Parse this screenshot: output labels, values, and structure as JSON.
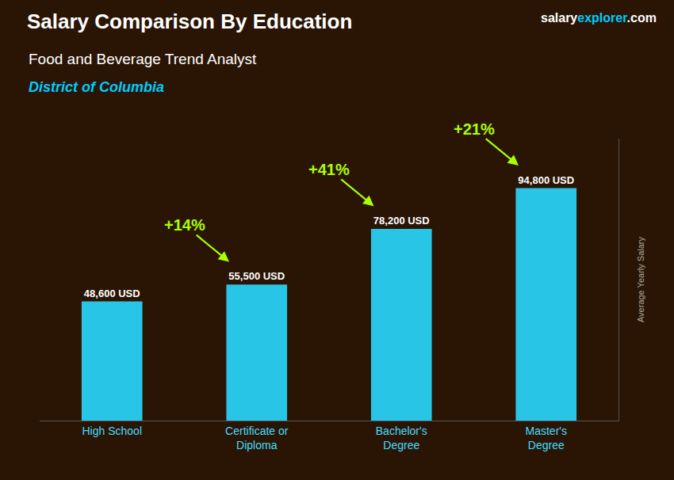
{
  "chart_data": {
    "type": "bar",
    "title": "Salary Comparison By Education",
    "subtitle": [
      "Food and Beverage Trend Analyst",
      "District of Columbia"
    ],
    "ylabel": "Average Yearly Salary",
    "categories": [
      "High School",
      "Certificate or\nDiploma",
      "Bachelor's\nDegree",
      "Master's\nDegree"
    ],
    "values": [
      48600,
      55500,
      78200,
      94800
    ],
    "value_labels": [
      "48,600 USD",
      "55,500 USD",
      "78,200 USD",
      "94,800 USD"
    ],
    "data_labels": true,
    "color": "#29c5e6",
    "ylim": [
      0,
      115000
    ],
    "yticks": [],
    "tick_labels": "x",
    "grid": false,
    "annotations": [
      {
        "text": "+14%",
        "from": "High School",
        "to": "Certificate or\nDiploma",
        "color": "#aaff00"
      },
      {
        "text": "+41%",
        "from": "Certificate or\nDiploma",
        "to": "Bachelor's\nDegree",
        "color": "#aaff00"
      },
      {
        "text": "+21%",
        "from": "Bachelor's\nDegree",
        "to": "Master's\nDegree",
        "color": "#aaff00"
      },
      {
        "text": "salary",
        "color": "#ffffff"
      },
      {
        "text": "explorer",
        "color": "#00ccff"
      },
      {
        "text": ".com",
        "color": "#ffffff"
      }
    ]
  }
}
